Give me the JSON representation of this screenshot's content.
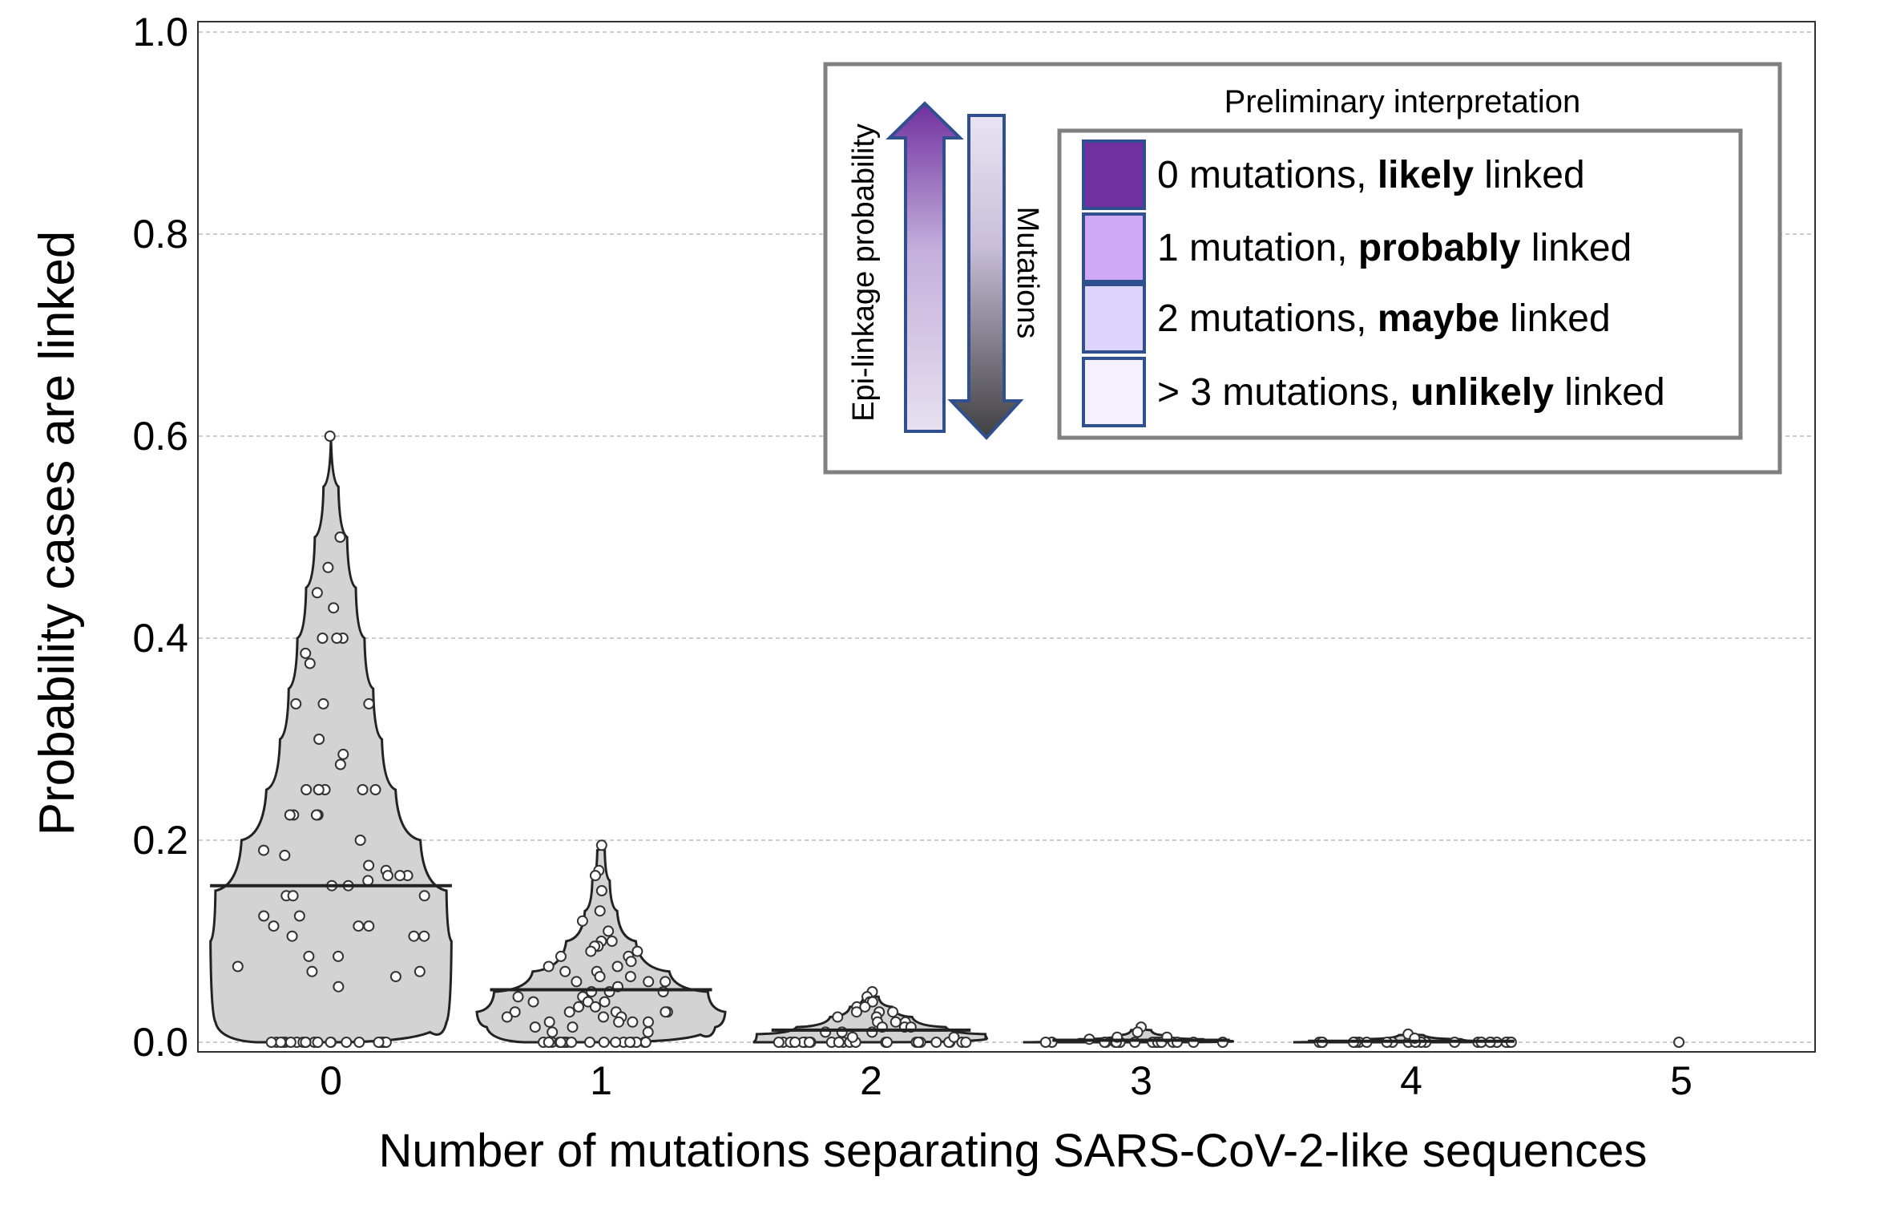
{
  "chart_data": {
    "type": "violin",
    "title": "",
    "xlabel": "Number of mutations separating SARS-CoV-2-like sequences",
    "ylabel": "Probability cases are linked",
    "ylim": [
      0,
      1.0
    ],
    "yticks": [
      "0.0",
      "0.2",
      "0.4",
      "0.6",
      "0.8",
      "1.0"
    ],
    "ytick_values": [
      0,
      0.2,
      0.4,
      0.6,
      0.8,
      1.0
    ],
    "categories": [
      "0",
      "1",
      "2",
      "3",
      "4",
      "5"
    ],
    "grid": "horizontal dashed",
    "fill_color": "#d3d3d3",
    "series": [
      {
        "category": "0",
        "median": 0.155,
        "max": 0.6,
        "density": [
          [
            0,
            0.6
          ],
          [
            0.02,
            0.93
          ],
          [
            0.1,
            0.97
          ],
          [
            0.15,
            0.93
          ],
          [
            0.2,
            0.72
          ],
          [
            0.25,
            0.52
          ],
          [
            0.3,
            0.41
          ],
          [
            0.35,
            0.34
          ],
          [
            0.4,
            0.27
          ],
          [
            0.45,
            0.2
          ],
          [
            0.5,
            0.13
          ],
          [
            0.55,
            0.06
          ],
          [
            0.6,
            0.0
          ]
        ],
        "points": [
          0,
          0,
          0,
          0,
          0,
          0,
          0,
          0,
          0,
          0,
          0,
          0,
          0,
          0,
          0,
          0,
          0,
          0,
          0,
          0,
          0,
          0,
          0.6,
          0.5,
          0.47,
          0.445,
          0.43,
          0.4,
          0.4,
          0.4,
          0.385,
          0.375,
          0.335,
          0.335,
          0.335,
          0.3,
          0.285,
          0.275,
          0.25,
          0.25,
          0.25,
          0.25,
          0.25,
          0.25,
          0.225,
          0.225,
          0.225,
          0.225,
          0.2,
          0.19,
          0.185,
          0.175,
          0.17,
          0.165,
          0.165,
          0.165,
          0.16,
          0.155,
          0.155,
          0.145,
          0.145,
          0.145,
          0.125,
          0.125,
          0.115,
          0.115,
          0.115,
          0.105,
          0.105,
          0.105,
          0.085,
          0.085,
          0.075,
          0.07,
          0.07,
          0.065,
          0.055
        ]
      },
      {
        "category": "1",
        "median": 0.052,
        "max": 0.195,
        "density": [
          [
            0,
            0.62
          ],
          [
            0.015,
            0.92
          ],
          [
            0.03,
            1.0
          ],
          [
            0.05,
            0.86
          ],
          [
            0.07,
            0.55
          ],
          [
            0.1,
            0.28
          ],
          [
            0.13,
            0.13
          ],
          [
            0.16,
            0.07
          ],
          [
            0.19,
            0.03
          ],
          [
            0.195,
            0.0
          ]
        ],
        "points": [
          0,
          0,
          0,
          0,
          0,
          0,
          0,
          0,
          0,
          0,
          0,
          0,
          0,
          0,
          0,
          0,
          0,
          0,
          0.195,
          0.17,
          0.165,
          0.15,
          0.13,
          0.12,
          0.11,
          0.1,
          0.1,
          0.095,
          0.095,
          0.09,
          0.09,
          0.085,
          0.085,
          0.08,
          0.075,
          0.07,
          0.07,
          0.065,
          0.06,
          0.06,
          0.055,
          0.05,
          0.05,
          0.045,
          0.045,
          0.04,
          0.04,
          0.04,
          0.035,
          0.035,
          0.03,
          0.03,
          0.03,
          0.03,
          0.025,
          0.025,
          0.025,
          0.02,
          0.02,
          0.02,
          0.015,
          0.015,
          0.01,
          0.01,
          0.05,
          0.06,
          0.065,
          0.075,
          0.03,
          0.02
        ]
      },
      {
        "category": "2",
        "median": 0.012,
        "max": 0.05,
        "density": [
          [
            0,
            0.95
          ],
          [
            0.008,
            0.92
          ],
          [
            0.015,
            0.6
          ],
          [
            0.025,
            0.33
          ],
          [
            0.035,
            0.17
          ],
          [
            0.045,
            0.06
          ],
          [
            0.05,
            0.0
          ]
        ],
        "points": [
          0,
          0,
          0,
          0,
          0,
          0,
          0,
          0,
          0,
          0,
          0,
          0,
          0,
          0,
          0,
          0,
          0,
          0,
          0,
          0,
          0,
          0,
          0,
          0,
          0.05,
          0.045,
          0.04,
          0.04,
          0.035,
          0.035,
          0.03,
          0.03,
          0.03,
          0.025,
          0.025,
          0.02,
          0.02,
          0.02,
          0.015,
          0.015,
          0.015,
          0.01,
          0.01,
          0.01,
          0.005,
          0.005
        ]
      },
      {
        "category": "3",
        "median": 0.002,
        "max": 0.015,
        "density": [
          [
            0,
            0.95
          ],
          [
            0.003,
            0.5
          ],
          [
            0.007,
            0.18
          ],
          [
            0.012,
            0.08
          ],
          [
            0.015,
            0.0
          ]
        ],
        "points": [
          0,
          0,
          0,
          0,
          0,
          0,
          0,
          0,
          0,
          0,
          0,
          0,
          0,
          0,
          0,
          0,
          0,
          0,
          0.015,
          0.01,
          0.005,
          0.005,
          0.003
        ]
      },
      {
        "category": "4",
        "median": 0.001,
        "max": 0.01,
        "density": [
          [
            0,
            0.95
          ],
          [
            0.003,
            0.4
          ],
          [
            0.007,
            0.1
          ],
          [
            0.01,
            0.0
          ]
        ],
        "points": [
          0,
          0,
          0,
          0,
          0,
          0,
          0,
          0,
          0,
          0,
          0,
          0,
          0,
          0,
          0,
          0,
          0,
          0,
          0,
          0,
          0,
          0,
          0.008,
          0.004
        ]
      },
      {
        "category": "5",
        "median": 0,
        "max": 0,
        "density": [],
        "points": [
          0
        ]
      }
    ],
    "legend": {
      "title": "Preliminary interpretation",
      "placement": "top-right",
      "items": [
        {
          "pre": "0 mutations, ",
          "bold": "likely",
          "post": " linked",
          "color": "#7030a0"
        },
        {
          "pre": "1 mutation, ",
          "bold": "probably",
          "post": " linked",
          "color": "#d0a8f5"
        },
        {
          "pre": "2 mutations, ",
          "bold": "maybe",
          "post": " linked",
          "color": "#ddd3fb"
        },
        {
          "pre": "> 3 mutations, ",
          "bold": "unlikely",
          "post": " linked",
          "color": "#f5f0fd"
        }
      ],
      "arrow_up_label": "Epi-linkage probability",
      "arrow_down_label": "Mutations"
    }
  }
}
